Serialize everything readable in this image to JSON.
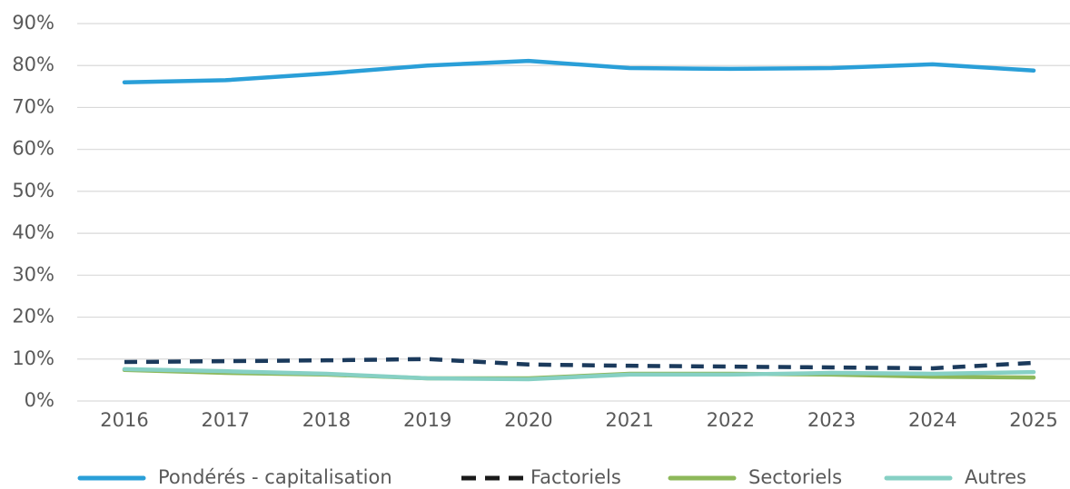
{
  "chart_data": {
    "type": "line",
    "categories": [
      "2016",
      "2017",
      "2018",
      "2019",
      "2020",
      "2021",
      "2022",
      "2023",
      "2024",
      "2025"
    ],
    "ylim": [
      0,
      90
    ],
    "yticks": [
      {
        "value": 0,
        "label": "0%"
      },
      {
        "value": 10,
        "label": "10%"
      },
      {
        "value": 20,
        "label": "20%"
      },
      {
        "value": 30,
        "label": "30%"
      },
      {
        "value": 40,
        "label": "40%"
      },
      {
        "value": 50,
        "label": "50%"
      },
      {
        "value": 60,
        "label": "60%"
      },
      {
        "value": 70,
        "label": "70%"
      },
      {
        "value": 80,
        "label": "80%"
      },
      {
        "value": 90,
        "label": "90%"
      }
    ],
    "grid": true,
    "legend": "bottom",
    "series": [
      {
        "name": "Pondérés - capitalisation",
        "color": "#2a9fd8",
        "dashed": false,
        "values": [
          76,
          76.5,
          78.1,
          80,
          81.1,
          79.4,
          79.2,
          79.4,
          80.3,
          78.8
        ]
      },
      {
        "name": "Factoriels",
        "color": "#1b3a5c",
        "legend_color": "#1a1a1a",
        "dashed": true,
        "values": [
          9.3,
          9.5,
          9.7,
          10,
          8.7,
          8.4,
          8.2,
          8,
          7.8,
          9.1
        ]
      },
      {
        "name": "Sectoriels",
        "color": "#8db85a",
        "dashed": false,
        "values": [
          7.4,
          6.7,
          6.3,
          5.4,
          5.4,
          6.5,
          6.5,
          6.3,
          5.8,
          5.6
        ]
      },
      {
        "name": "Autres",
        "color": "#86d0c4",
        "dashed": false,
        "values": [
          7.6,
          7.1,
          6.5,
          5.4,
          5.2,
          6.3,
          6.3,
          6.7,
          6.5,
          6.9
        ]
      }
    ]
  }
}
